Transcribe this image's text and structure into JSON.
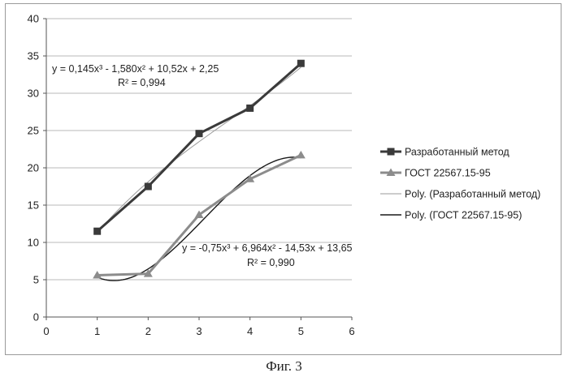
{
  "colors": {
    "series1": "#3a3a3a",
    "series2": "#8c8c8c",
    "trend1": "#9a9a9a",
    "trend2": "#1a1a1a",
    "grid": "#b8b8b8",
    "axis": "#555555"
  },
  "chart_data": {
    "type": "line",
    "xlim": [
      0,
      6
    ],
    "ylim": [
      0,
      40
    ],
    "x_ticks": [
      0,
      1,
      2,
      3,
      4,
      5,
      6
    ],
    "y_ticks": [
      0,
      5,
      10,
      15,
      20,
      25,
      30,
      35,
      40
    ],
    "grid": "horizontal",
    "legend_position": "right",
    "series": [
      {
        "name": "Разработанный метод",
        "marker": "square",
        "x": [
          1,
          2,
          3,
          4,
          5
        ],
        "y": [
          11.5,
          17.5,
          24.6,
          28.0,
          34.0
        ]
      },
      {
        "name": "ГОСТ 22567.15-95",
        "marker": "triangle",
        "x": [
          1,
          2,
          3,
          4,
          5
        ],
        "y": [
          5.6,
          5.8,
          13.7,
          18.5,
          21.7
        ]
      }
    ],
    "trendlines": [
      {
        "name": "Poly. (Разработанный метод)",
        "type": "polynomial-3",
        "coefficients": [
          0.145,
          -1.58,
          10.52,
          2.25
        ],
        "equation": "y = 0,145x³ - 1,580x² + 10,52x + 2,25",
        "r2": "R² = 0,994"
      },
      {
        "name": "Poly. (ГОСТ 22567.15-95)",
        "type": "polynomial-3",
        "coefficients": [
          -0.75,
          6.964,
          -14.53,
          13.65
        ],
        "equation": "y = -0,75x³ + 6,964x² - 14,53x + 13,65",
        "r2": "R² = 0,990"
      }
    ]
  },
  "caption": "Фиг. 3"
}
